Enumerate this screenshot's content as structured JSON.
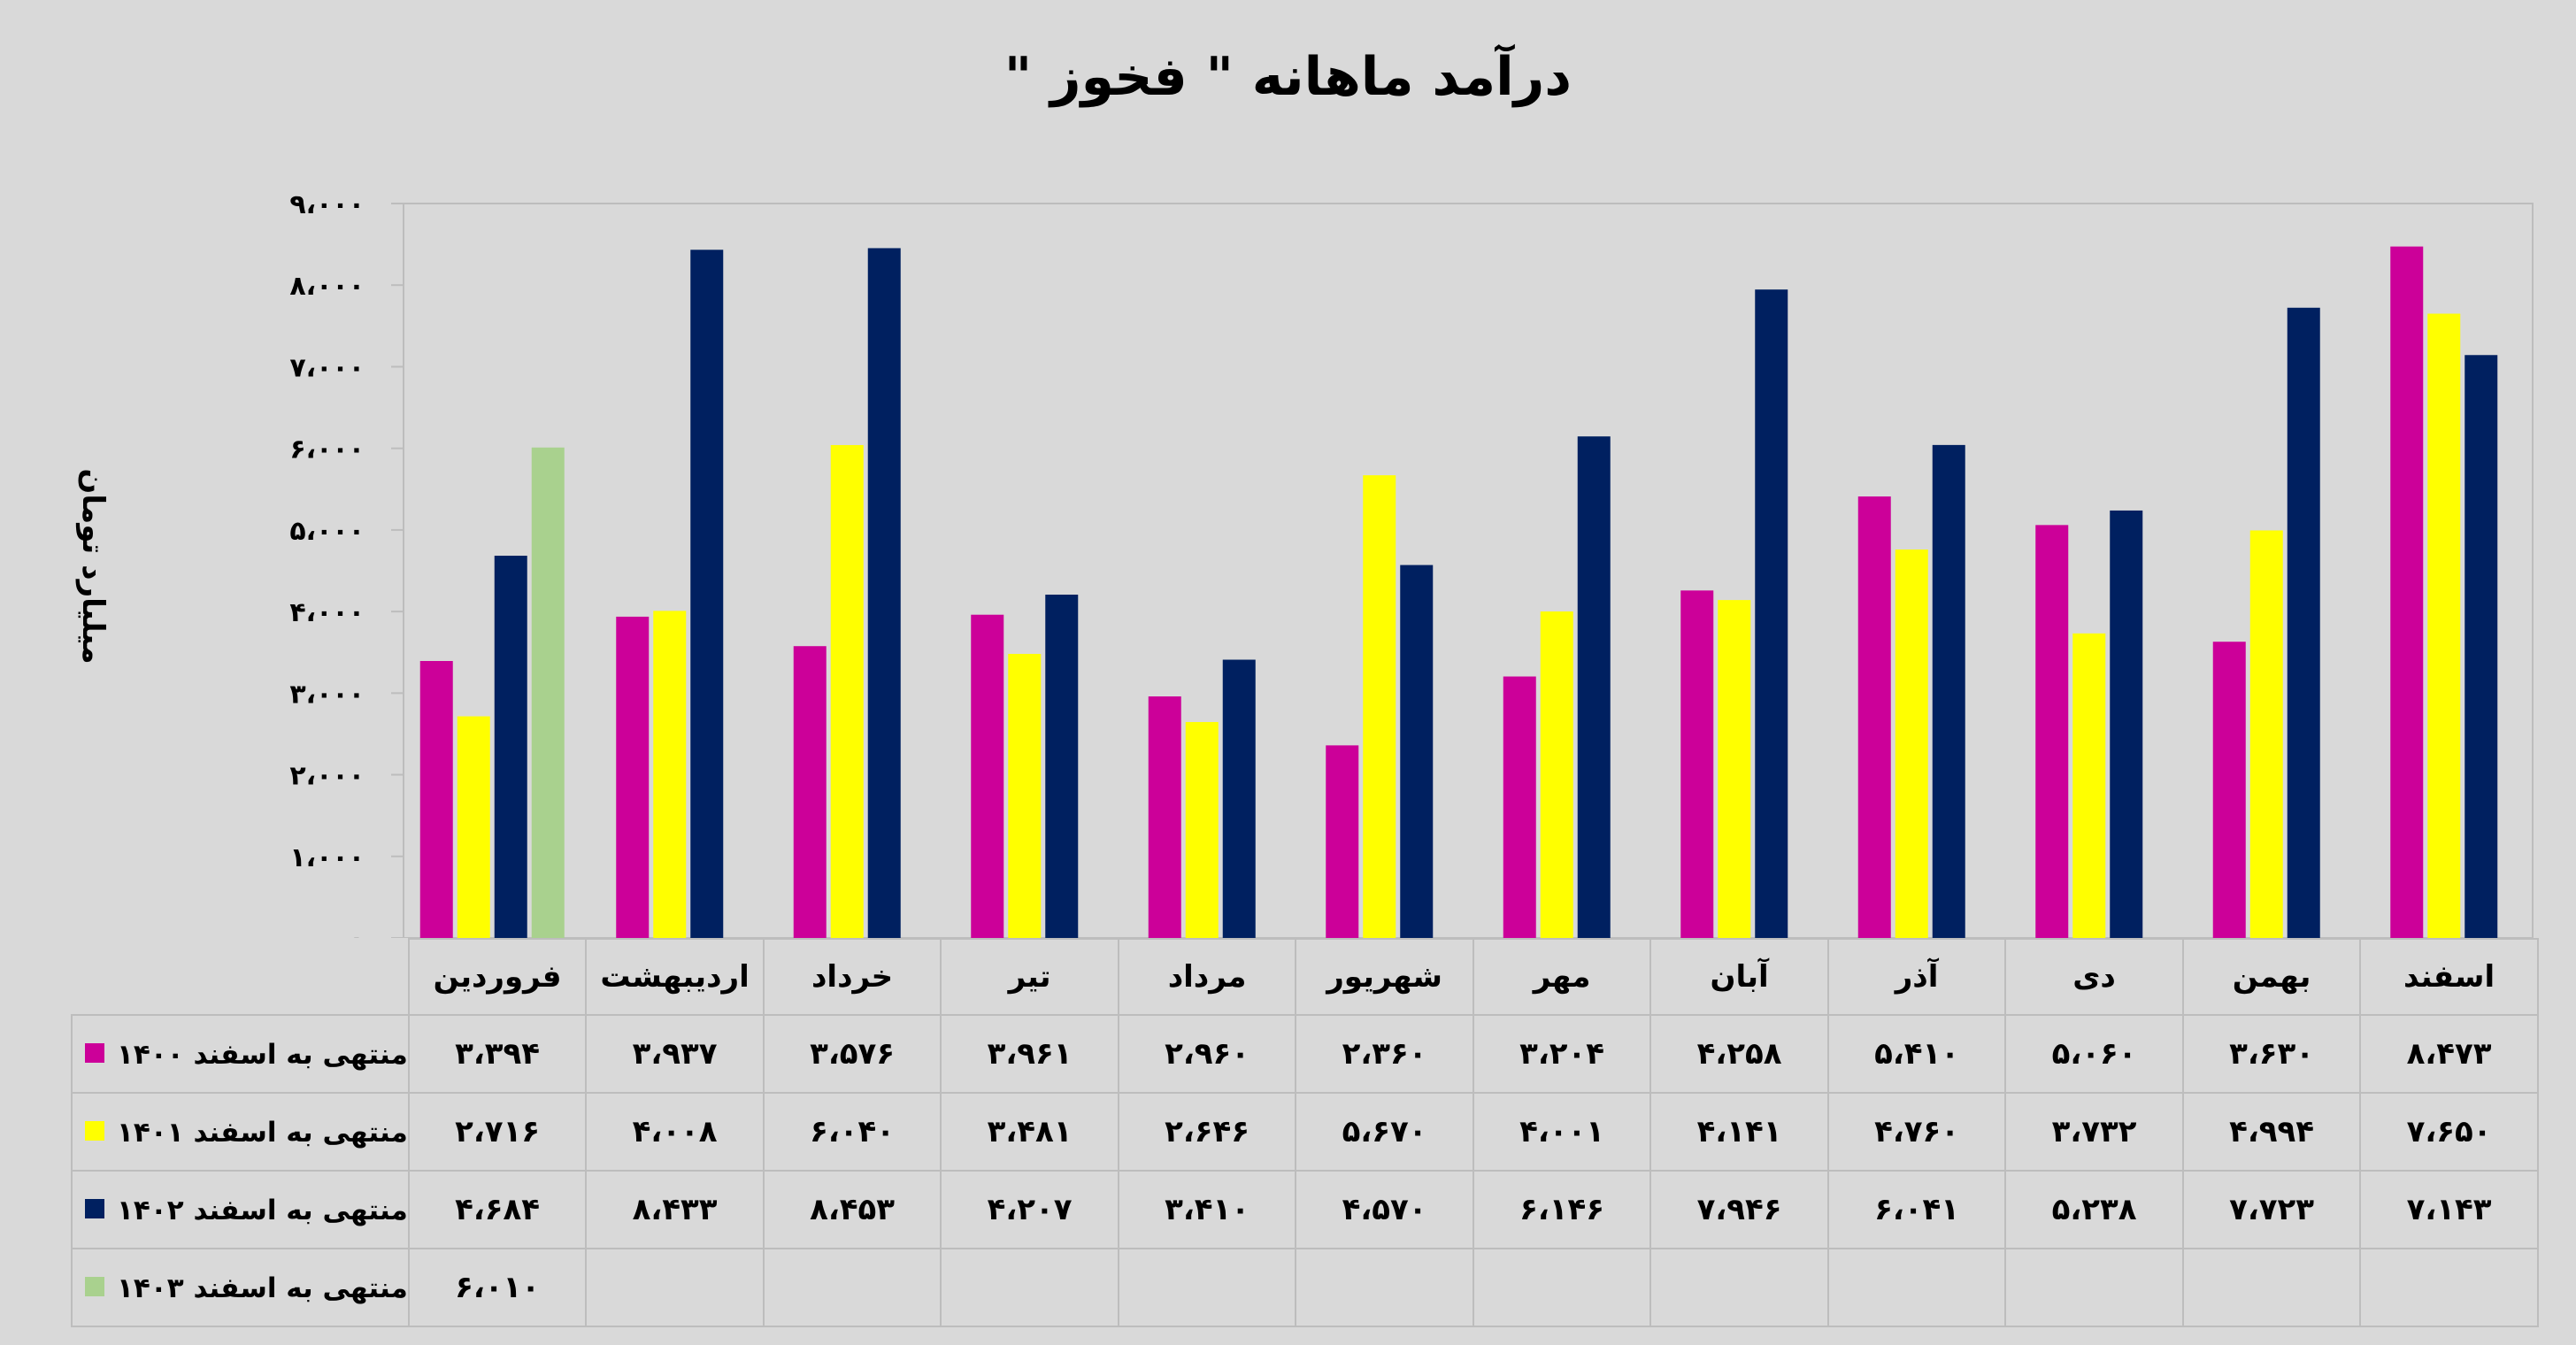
{
  "chart_data": {
    "type": "bar",
    "title": "درآمد ماهانه \" فخوز \"",
    "ylabel": "میلیارد تومان",
    "ylim": [
      0,
      9000
    ],
    "grid": false,
    "y_ticks": [
      0,
      1000,
      2000,
      3000,
      4000,
      5000,
      6000,
      7000,
      8000,
      9000
    ],
    "y_tick_labels": [
      "۰",
      "۱،۰۰۰",
      "۲،۰۰۰",
      "۳،۰۰۰",
      "۴،۰۰۰",
      "۵،۰۰۰",
      "۶،۰۰۰",
      "۷،۰۰۰",
      "۸،۰۰۰",
      "۹،۰۰۰"
    ],
    "categories": [
      "فروردین",
      "اردیبهشت",
      "خرداد",
      "تیر",
      "مرداد",
      "شهریور",
      "مهر",
      "آبان",
      "آذر",
      "دی",
      "بهمن",
      "اسفند"
    ],
    "series": [
      {
        "name": "منتهی به اسفند ۱۴۰۰",
        "color": "#cc0099",
        "values": [
          3394,
          3937,
          3576,
          3961,
          2960,
          2360,
          3204,
          4258,
          5410,
          5060,
          3630,
          8473
        ],
        "labels": [
          "۳،۳۹۴",
          "۳،۹۳۷",
          "۳،۵۷۶",
          "۳،۹۶۱",
          "۲،۹۶۰",
          "۲،۳۶۰",
          "۳،۲۰۴",
          "۴،۲۵۸",
          "۵،۴۱۰",
          "۵،۰۶۰",
          "۳،۶۳۰",
          "۸،۴۷۳"
        ]
      },
      {
        "name": "منتهی به اسفند ۱۴۰۱",
        "color": "#ffff00",
        "values": [
          2716,
          4008,
          6040,
          3481,
          2646,
          5670,
          4001,
          4141,
          4760,
          3732,
          4994,
          7650
        ],
        "labels": [
          "۲،۷۱۶",
          "۴،۰۰۸",
          "۶،۰۴۰",
          "۳،۴۸۱",
          "۲،۶۴۶",
          "۵،۶۷۰",
          "۴،۰۰۱",
          "۴،۱۴۱",
          "۴،۷۶۰",
          "۳،۷۳۲",
          "۴،۹۹۴",
          "۷،۶۵۰"
        ]
      },
      {
        "name": "منتهی به اسفند ۱۴۰۲",
        "color": "#002060",
        "values": [
          4684,
          8433,
          8453,
          4207,
          3410,
          4570,
          6146,
          7946,
          6041,
          5238,
          7723,
          7143
        ],
        "labels": [
          "۴،۶۸۴",
          "۸،۴۳۳",
          "۸،۴۵۳",
          "۴،۲۰۷",
          "۳،۴۱۰",
          "۴،۵۷۰",
          "۶،۱۴۶",
          "۷،۹۴۶",
          "۶،۰۴۱",
          "۵،۲۳۸",
          "۷،۷۲۳",
          "۷،۱۴۳"
        ]
      },
      {
        "name": "منتهی به اسفند ۱۴۰۳",
        "color": "#a9d18e",
        "values": [
          6010,
          null,
          null,
          null,
          null,
          null,
          null,
          null,
          null,
          null,
          null,
          null
        ],
        "labels": [
          "۶،۰۱۰",
          "",
          "",
          "",
          "",
          "",
          "",
          "",
          "",
          "",
          "",
          ""
        ]
      }
    ]
  }
}
